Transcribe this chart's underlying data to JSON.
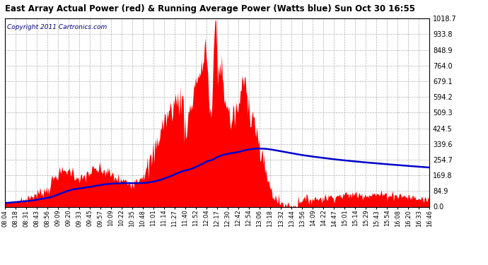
{
  "title": "East Array Actual Power (red) & Running Average Power (Watts blue) Sun Oct 30 16:55",
  "copyright_text": "Copyright 2011 Cartronics.com",
  "background_color": "#ffffff",
  "plot_bg_color": "#ffffff",
  "grid_color": "#b0b0b0",
  "actual_color": "#ff0000",
  "avg_color": "#0000cc",
  "ylim": [
    0.0,
    1018.7
  ],
  "yticks": [
    0.0,
    84.9,
    169.8,
    254.7,
    339.6,
    424.5,
    509.3,
    594.2,
    679.1,
    764.0,
    848.9,
    933.8,
    1018.7
  ],
  "x_tick_labels": [
    "08:04",
    "08:18",
    "08:31",
    "08:43",
    "08:56",
    "09:09",
    "09:20",
    "09:33",
    "09:45",
    "09:57",
    "10:09",
    "10:22",
    "10:35",
    "10:48",
    "11:01",
    "11:14",
    "11:27",
    "11:40",
    "11:52",
    "12:04",
    "12:17",
    "12:30",
    "12:42",
    "12:54",
    "13:06",
    "13:18",
    "13:32",
    "13:44",
    "13:56",
    "14:09",
    "14:22",
    "14:47",
    "15:01",
    "15:14",
    "15:29",
    "15:43",
    "15:54",
    "16:08",
    "16:20",
    "16:33",
    "16:46"
  ]
}
